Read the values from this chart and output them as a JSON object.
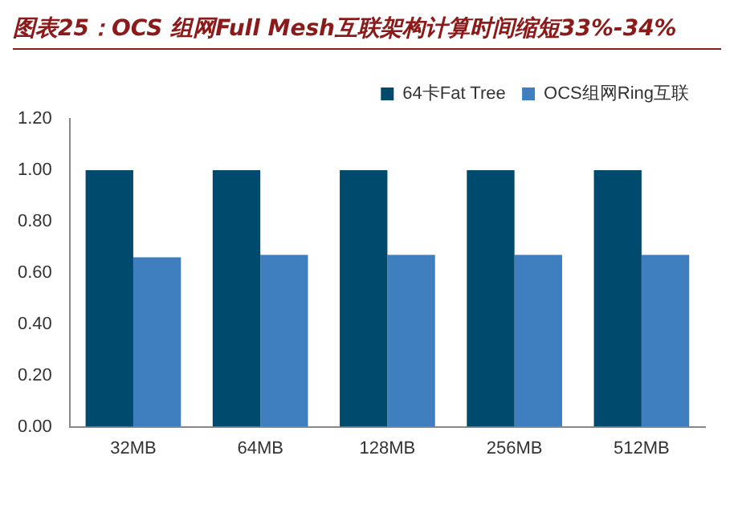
{
  "chart_data": {
    "type": "bar",
    "title": "图表25：OCS 组网Full Mesh互联架构计算时间缩短33%-34%",
    "categories": [
      "32MB",
      "64MB",
      "128MB",
      "256MB",
      "512MB"
    ],
    "series": [
      {
        "name": "64卡Fat Tree",
        "color": "#004a6e",
        "values": [
          1.0,
          1.0,
          1.0,
          1.0,
          1.0
        ]
      },
      {
        "name": "OCS组网Ring互联",
        "color": "#3f7fc0",
        "values": [
          0.66,
          0.67,
          0.67,
          0.67,
          0.67
        ]
      }
    ],
    "ylim": [
      0,
      1.2
    ],
    "yticks": [
      {
        "value": 0,
        "label": "0.00"
      },
      {
        "value": 0.2,
        "label": "0.20"
      },
      {
        "value": 0.4,
        "label": "0.40"
      },
      {
        "value": 0.6,
        "label": "0.60"
      },
      {
        "value": 0.8,
        "label": "0.80"
      },
      {
        "value": 1.0,
        "label": "1.00"
      },
      {
        "value": 1.2,
        "label": "1.20"
      }
    ],
    "grid": false,
    "legend": "top right"
  }
}
